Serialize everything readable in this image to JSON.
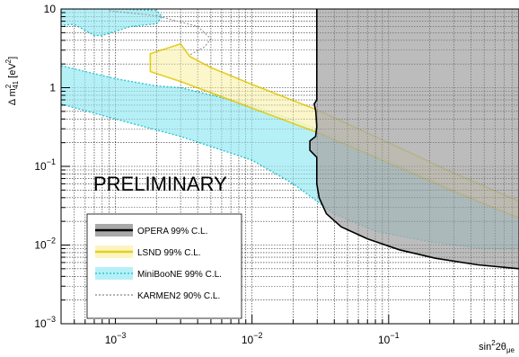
{
  "chart_data": {
    "type": "area",
    "x_scale": "log",
    "y_scale": "log",
    "xlim": [
      0.0004,
      0.9
    ],
    "ylim": [
      0.001,
      10
    ],
    "xlabel_main": "sin",
    "xlabel_sup": "2",
    "xlabel_rest": "2θ",
    "xlabel_sub": "μe",
    "ylabel_main": "Δ m",
    "ylabel_sub": "41",
    "ylabel_sup": "2",
    "ylabel_unit": " [eV",
    "ylabel_unit_sup": "2",
    "ylabel_close": "]",
    "x_ticks": [
      {
        "value": 0.001,
        "base": "10",
        "exp": "−3"
      },
      {
        "value": 0.01,
        "base": "10",
        "exp": "−2"
      },
      {
        "value": 0.1,
        "base": "10",
        "exp": "−1"
      }
    ],
    "y_ticks": [
      {
        "value": 0.001,
        "base": "10",
        "exp": "−3"
      },
      {
        "value": 0.01,
        "base": "10",
        "exp": "−2"
      },
      {
        "value": 0.1,
        "base": "10",
        "exp": "−1"
      },
      {
        "value": 1,
        "base": "1",
        "exp": ""
      },
      {
        "value": 10,
        "base": "10",
        "exp": ""
      }
    ],
    "grid": true,
    "annotation": "PRELIMINARY",
    "legend_position": "bottom-left",
    "series": [
      {
        "name": "OPERA 99% C.L.",
        "role": "excluded",
        "fill": "#a9a9a9",
        "stroke": "#000000",
        "style": "solid",
        "boundary": [
          [
            0.0298,
            10
          ],
          [
            0.0298,
            0.7
          ],
          [
            0.0285,
            0.62
          ],
          [
            0.0293,
            0.5
          ],
          [
            0.0298,
            0.32
          ],
          [
            0.0292,
            0.24
          ],
          [
            0.0265,
            0.21
          ],
          [
            0.0265,
            0.16
          ],
          [
            0.0298,
            0.13
          ],
          [
            0.0298,
            0.06
          ],
          [
            0.031,
            0.04
          ],
          [
            0.035,
            0.025
          ],
          [
            0.045,
            0.017
          ],
          [
            0.07,
            0.012
          ],
          [
            0.12,
            0.0087
          ],
          [
            0.22,
            0.0068
          ],
          [
            0.45,
            0.0056
          ],
          [
            0.9,
            0.005
          ]
        ]
      },
      {
        "name": "LSND 99% C.L.",
        "role": "allowed",
        "fill": "#fbf5c2",
        "stroke": "#e4cf1e",
        "style": "solid",
        "upper": [
          [
            0.0018,
            2.7
          ],
          [
            0.003,
            3.6
          ],
          [
            0.0035,
            2.5
          ],
          [
            0.005,
            1.8
          ],
          [
            0.01,
            1.1
          ],
          [
            0.03,
            0.52
          ],
          [
            0.1,
            0.2
          ],
          [
            0.3,
            0.082
          ],
          [
            0.9,
            0.036
          ]
        ],
        "lower": [
          [
            0.0018,
            1.6
          ],
          [
            0.003,
            1.2
          ],
          [
            0.01,
            0.55
          ],
          [
            0.03,
            0.27
          ],
          [
            0.1,
            0.11
          ],
          [
            0.3,
            0.048
          ],
          [
            0.9,
            0.022
          ]
        ]
      },
      {
        "name": "MiniBooNE 99% C.L.",
        "role": "allowed",
        "fill": "#b6f0f7",
        "stroke": "#2bc7d3",
        "style": "dotted",
        "upper": [
          [
            0.0004,
            1.9
          ],
          [
            0.001,
            1.3
          ],
          [
            0.002,
            1.05
          ],
          [
            0.003,
            1.0
          ],
          [
            0.01,
            0.6
          ],
          [
            0.03,
            0.3
          ],
          [
            0.1,
            0.12
          ],
          [
            0.3,
            0.05
          ],
          [
            0.9,
            0.022
          ]
        ],
        "lower": [
          [
            0.0004,
            0.62
          ],
          [
            0.001,
            0.4
          ],
          [
            0.003,
            0.24
          ],
          [
            0.01,
            0.12
          ],
          [
            0.02,
            0.06
          ],
          [
            0.04,
            0.025
          ],
          [
            0.08,
            0.015
          ],
          [
            0.2,
            0.011
          ],
          [
            0.5,
            0.009
          ],
          [
            0.9,
            0.009
          ]
        ],
        "blob_upper": [
          [
            0.0004,
            10
          ],
          [
            0.001,
            10
          ],
          [
            0.002,
            9.6
          ],
          [
            0.0022,
            8
          ],
          [
            0.002,
            6.5
          ],
          [
            0.0013,
            6
          ],
          [
            0.001,
            5.2
          ],
          [
            0.0008,
            4.6
          ],
          [
            0.0007,
            4.6
          ]
        ],
        "blob_lower": [
          [
            0.0004,
            6.2
          ],
          [
            0.0005,
            6.4
          ],
          [
            0.0007,
            4.6
          ]
        ]
      },
      {
        "name": "KARMEN2 90% C.L.",
        "role": "excluded-limit",
        "stroke": "#9a9a9a",
        "style": "dotted",
        "line": [
          [
            0.0009,
            9.5
          ],
          [
            0.002,
            8.2
          ],
          [
            0.004,
            6.0
          ],
          [
            0.005,
            4.2
          ],
          [
            0.0045,
            3.3
          ],
          [
            0.0035,
            2.6
          ]
        ]
      }
    ]
  }
}
